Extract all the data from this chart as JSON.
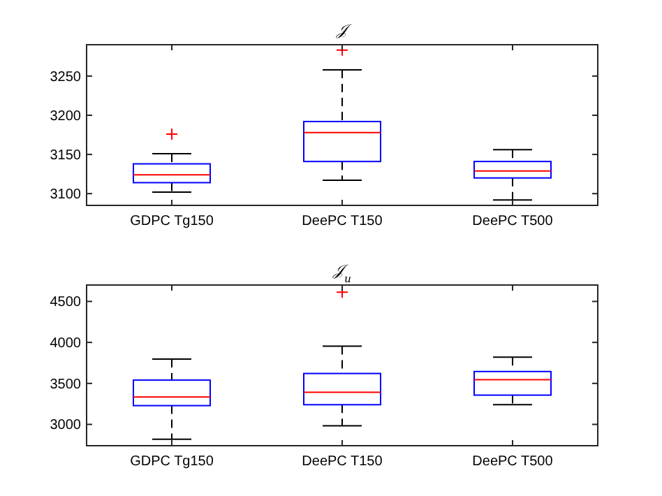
{
  "chart_data": [
    {
      "type": "box",
      "title": "𝒥",
      "categories": [
        "GDPC Tg150",
        "DeePC T150",
        "DeePC T500"
      ],
      "ylim": [
        3085,
        3290
      ],
      "yticks": [
        3100,
        3150,
        3200,
        3250
      ],
      "color": "#0000ff",
      "boxes": [
        {
          "low": 3102,
          "q1": 3114,
          "median": 3124,
          "q3": 3138,
          "high": 3151,
          "outliers": [
            3176
          ]
        },
        {
          "low": 3117,
          "q1": 3141,
          "median": 3178,
          "q3": 3192,
          "high": 3258,
          "outliers": [
            3283
          ]
        },
        {
          "low": 3092,
          "q1": 3120,
          "median": 3129,
          "q3": 3141,
          "high": 3156
        }
      ]
    },
    {
      "type": "box",
      "title": "𝒥$_{u}$",
      "categories": [
        "GDPC Tg150",
        "DeePC T150",
        "DeePC T500"
      ],
      "ylim": [
        2740,
        4700
      ],
      "yticks": [
        3000,
        3500,
        4000,
        4500
      ],
      "color": "#0000ff",
      "boxes": [
        {
          "low": 2819,
          "q1": 3229,
          "median": 3334,
          "q3": 3540,
          "high": 3796
        },
        {
          "low": 2982,
          "q1": 3240,
          "median": 3392,
          "q3": 3621,
          "high": 3955,
          "outliers": [
            4612
          ]
        },
        {
          "low": 3241,
          "q1": 3357,
          "median": 3545,
          "q3": 3645,
          "high": 3821
        }
      ]
    }
  ]
}
